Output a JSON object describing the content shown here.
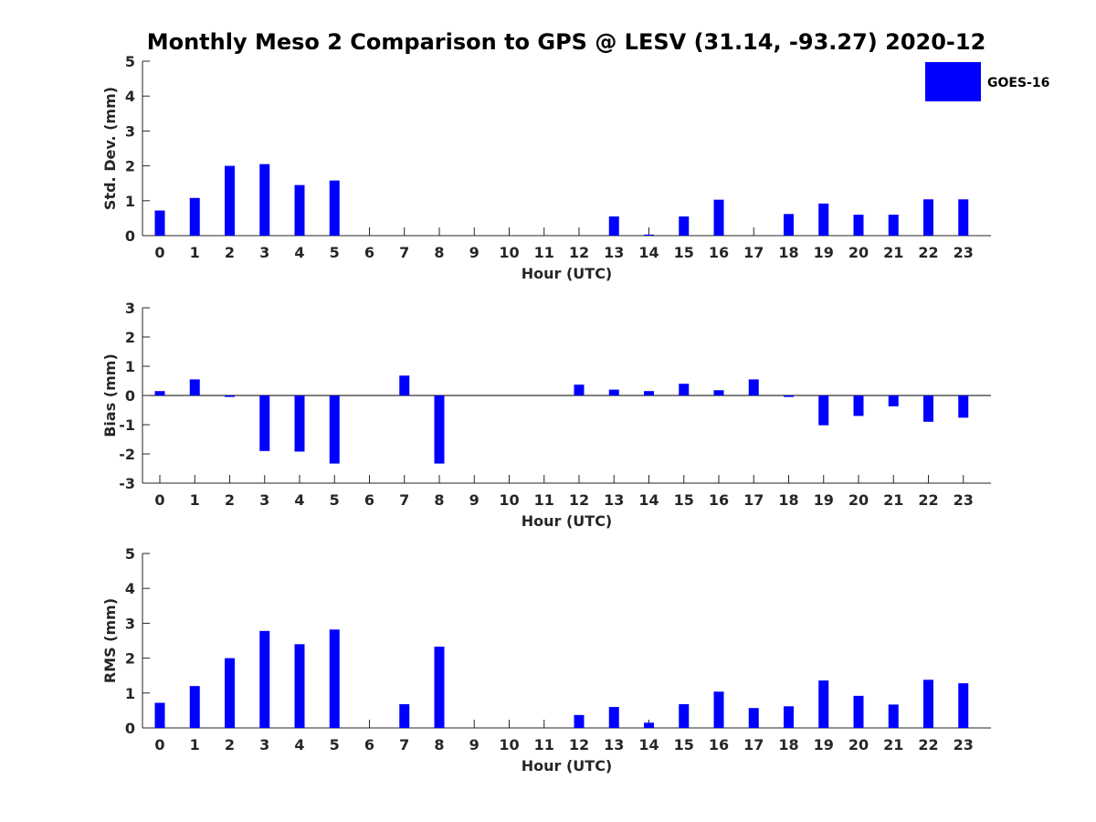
{
  "figure_title": "Monthly Meso 2 Comparison to GPS @ LESV (31.14, -93.27) 2020-12",
  "legend": {
    "label": "GOES-16",
    "color": "#0000ff"
  },
  "colors": {
    "bar": "#0000ff",
    "axis": "#262626",
    "zero_line": "#000000",
    "background": "#ffffff"
  },
  "chart_data": [
    {
      "type": "bar",
      "title": "",
      "xlabel": "Hour (UTC)",
      "ylabel": "Std. Dev. (mm)",
      "categories": [
        "0",
        "1",
        "2",
        "3",
        "4",
        "5",
        "6",
        "7",
        "8",
        "9",
        "10",
        "11",
        "12",
        "13",
        "14",
        "15",
        "16",
        "17",
        "18",
        "19",
        "20",
        "21",
        "22",
        "23"
      ],
      "ylim": [
        0,
        5
      ],
      "yticks": [
        0,
        1,
        2,
        3,
        4,
        5
      ],
      "series": [
        {
          "name": "GOES-16",
          "values": [
            0.72,
            1.08,
            2.0,
            2.05,
            1.45,
            1.58,
            0,
            0,
            0,
            0,
            0,
            0,
            0,
            0.55,
            0.03,
            0.55,
            1.03,
            0,
            0.62,
            0.92,
            0.6,
            0.6,
            1.04,
            1.04
          ]
        }
      ],
      "grid": false
    },
    {
      "type": "bar",
      "title": "",
      "xlabel": "Hour (UTC)",
      "ylabel": "Bias (mm)",
      "categories": [
        "0",
        "1",
        "2",
        "3",
        "4",
        "5",
        "6",
        "7",
        "8",
        "9",
        "10",
        "11",
        "12",
        "13",
        "14",
        "15",
        "16",
        "17",
        "18",
        "19",
        "20",
        "21",
        "22",
        "23"
      ],
      "ylim": [
        -3,
        3
      ],
      "yticks": [
        -3,
        -2,
        -1,
        0,
        1,
        2,
        3
      ],
      "series": [
        {
          "name": "GOES-16",
          "values": [
            0.15,
            0.55,
            -0.05,
            -1.9,
            -1.92,
            -2.33,
            0,
            0.68,
            -2.33,
            0,
            0,
            0,
            0.37,
            0.2,
            0.15,
            0.4,
            0.18,
            0.55,
            -0.05,
            -1.02,
            -0.7,
            -0.37,
            -0.9,
            -0.76
          ]
        }
      ],
      "grid": false
    },
    {
      "type": "bar",
      "title": "",
      "xlabel": "Hour (UTC)",
      "ylabel": "RMS (mm)",
      "categories": [
        "0",
        "1",
        "2",
        "3",
        "4",
        "5",
        "6",
        "7",
        "8",
        "9",
        "10",
        "11",
        "12",
        "13",
        "14",
        "15",
        "16",
        "17",
        "18",
        "19",
        "20",
        "21",
        "22",
        "23"
      ],
      "ylim": [
        0,
        5
      ],
      "yticks": [
        0,
        1,
        2,
        3,
        4,
        5
      ],
      "series": [
        {
          "name": "GOES-16",
          "values": [
            0.72,
            1.2,
            2.0,
            2.78,
            2.4,
            2.82,
            0,
            0.68,
            2.33,
            0,
            0,
            0,
            0.37,
            0.6,
            0.15,
            0.68,
            1.04,
            0.57,
            0.62,
            1.36,
            0.92,
            0.67,
            1.38,
            1.28
          ]
        }
      ],
      "grid": false
    }
  ]
}
